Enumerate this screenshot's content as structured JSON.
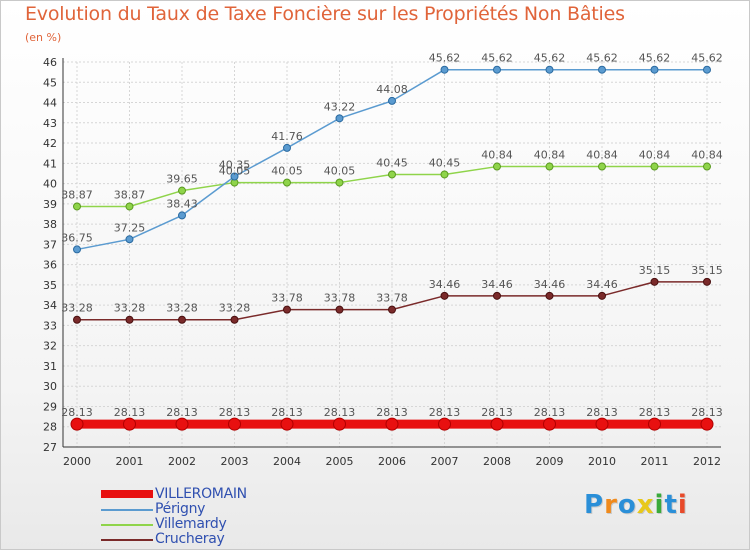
{
  "title": "Evolution du Taux de Taxe Foncière sur les Propriétés Non Bâties",
  "subtitle": "(en %)",
  "logo": {
    "text": "Proxiti",
    "letters": [
      "P",
      "r",
      "o",
      "x",
      "i",
      "t",
      "i"
    ],
    "colors": [
      "#2a8fd8",
      "#f08a1c",
      "#2a8fd8",
      "#e8c81a",
      "#3aaa3a",
      "#2a8fd8",
      "#e84a2a"
    ]
  },
  "chart_data": {
    "type": "line",
    "x": [
      "2000",
      "2001",
      "2002",
      "2003",
      "2004",
      "2005",
      "2006",
      "2007",
      "2008",
      "2009",
      "2010",
      "2011",
      "2012"
    ],
    "ylim": [
      27,
      46
    ],
    "yticks": [
      27,
      28,
      29,
      30,
      31,
      32,
      33,
      34,
      35,
      36,
      37,
      38,
      39,
      40,
      41,
      42,
      43,
      44,
      45,
      46
    ],
    "grid": true,
    "legend_position": "bottom-left",
    "series": [
      {
        "name": "VILLEROMAIN",
        "color": "#e81010",
        "values": [
          28.13,
          28.13,
          28.13,
          28.13,
          28.13,
          28.13,
          28.13,
          28.13,
          28.13,
          28.13,
          28.13,
          28.13,
          28.13
        ],
        "labels": [
          "28.13",
          "28.13",
          "28.13",
          "28.13",
          "28.13",
          "28.13",
          "28.13",
          "28.13",
          "28.13",
          "28.13",
          "28.13",
          "28.13",
          "28.13"
        ]
      },
      {
        "name": "Périgny",
        "color": "#5b9bd0",
        "values": [
          36.75,
          37.25,
          38.43,
          40.35,
          41.76,
          43.22,
          44.08,
          45.62,
          45.62,
          45.62,
          45.62,
          45.62,
          45.62
        ],
        "labels": [
          "36.75",
          "37.25",
          "38.43",
          "40.35",
          "41.76",
          "43.22",
          "44.08",
          "45.62",
          "45.62",
          "45.62",
          "45.62",
          "45.62",
          "45.62"
        ]
      },
      {
        "name": "Villemardy",
        "color": "#8fd44a",
        "values": [
          38.87,
          38.87,
          39.65,
          40.05,
          40.05,
          40.05,
          40.45,
          40.45,
          40.84,
          40.84,
          40.84,
          40.84,
          40.84
        ],
        "labels": [
          "38.87",
          "38.87",
          "39.65",
          "40.05",
          "40.05",
          "40.05",
          "40.45",
          "40.45",
          "40.84",
          "40.84",
          "40.84",
          "40.84",
          "40.84"
        ]
      },
      {
        "name": "Crucheray",
        "color": "#7a2a2a",
        "values": [
          33.28,
          33.28,
          33.28,
          33.28,
          33.78,
          33.78,
          33.78,
          34.46,
          34.46,
          34.46,
          34.46,
          35.15,
          35.15
        ],
        "labels": [
          "33.28",
          "33.28",
          "33.28",
          "33.28",
          "33.78",
          "33.78",
          "33.78",
          "34.46",
          "34.46",
          "34.46",
          "34.46",
          "35.15",
          "35.15"
        ]
      }
    ]
  }
}
